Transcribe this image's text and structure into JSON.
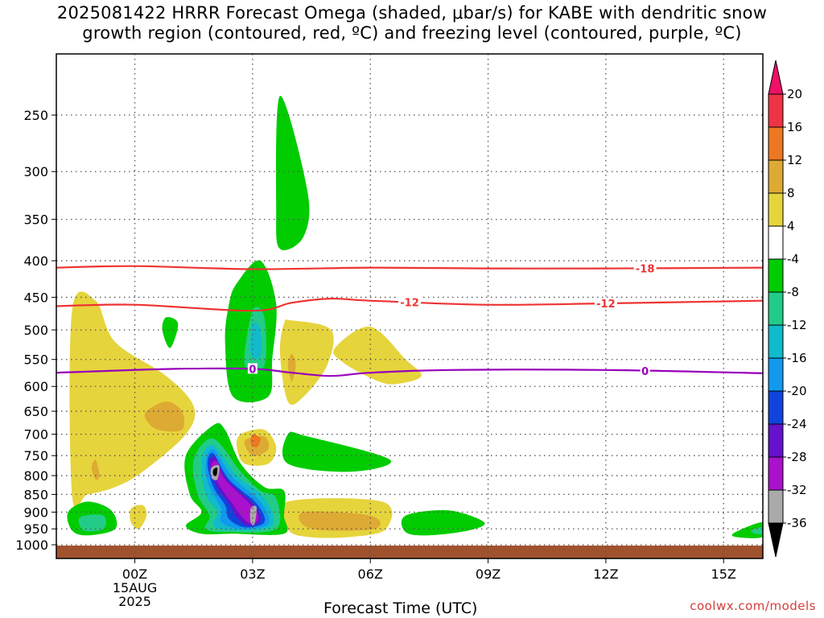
{
  "title": {
    "line1": "2025081422 HRRR Forecast Omega (shaded, μbar/s) for KABE with dendritic snow",
    "line2": "growth region (contoured, red, ºC) and freezing level (contoured, purple, ºC)"
  },
  "watermark": "coolwx.com/models",
  "chart_data": {
    "type": "heatmap",
    "xlabel": "Forecast Time (UTC)",
    "ylabel": "",
    "x_ticks": [
      {
        "hour": 0,
        "label": "00Z",
        "sub1": "15AUG",
        "sub2": "2025"
      },
      {
        "hour": 3,
        "label": "03Z"
      },
      {
        "hour": 6,
        "label": "06Z"
      },
      {
        "hour": 9,
        "label": "09Z"
      },
      {
        "hour": 12,
        "label": "12Z"
      },
      {
        "hour": 15,
        "label": "15Z"
      }
    ],
    "xlim_hours": [
      -2,
      16
    ],
    "y_ticks_hpa": [
      250,
      300,
      350,
      400,
      450,
      500,
      550,
      600,
      650,
      700,
      750,
      800,
      850,
      900,
      950,
      1000
    ],
    "ylim_hpa": [
      200,
      1000
    ],
    "y_scale": "log",
    "grid": "dotted",
    "colorbar": {
      "levels": [
        20,
        16,
        12,
        8,
        4,
        -4,
        -8,
        -12,
        -16,
        -20,
        -24,
        -28,
        -32,
        -36
      ],
      "colors": [
        "#ee1166",
        "#ee3344",
        "#ee7722",
        "#ddaa33",
        "#e6d43c",
        "#ffffff",
        "#00cc00",
        "#22cc88",
        "#11bbcc",
        "#1199ee",
        "#1144dd",
        "#6611cc",
        "#aa11cc",
        "#aaaaaa",
        "#000000"
      ]
    },
    "contours": [
      {
        "name": "-18",
        "color": "#ee3333",
        "label_hours": [
          13
        ],
        "points": [
          [
            -2,
            409
          ],
          [
            0,
            407
          ],
          [
            3,
            411
          ],
          [
            6,
            409
          ],
          [
            9,
            410
          ],
          [
            12,
            410
          ],
          [
            16,
            409
          ]
        ]
      },
      {
        "name": "-12",
        "color": "#ee3333",
        "label_hours": [
          7,
          12
        ],
        "points": [
          [
            -2,
            463
          ],
          [
            0,
            461
          ],
          [
            3,
            470
          ],
          [
            4,
            458
          ],
          [
            5,
            452
          ],
          [
            6,
            455
          ],
          [
            9,
            461
          ],
          [
            12,
            459
          ],
          [
            16,
            455
          ]
        ]
      },
      {
        "name": "0",
        "color": "#9900bb",
        "label_hours": [
          3,
          13
        ],
        "points": [
          [
            -2,
            574
          ],
          [
            1,
            567
          ],
          [
            3,
            567
          ],
          [
            4,
            574
          ],
          [
            5,
            580
          ],
          [
            6,
            574
          ],
          [
            8,
            569
          ],
          [
            12,
            569
          ],
          [
            16,
            575
          ]
        ]
      }
    ],
    "shaded_regions": [
      {
        "value": 6,
        "color": "#e6d43c",
        "points": [
          [
            -1.6,
            850
          ],
          [
            -1.6,
            470
          ],
          [
            -1,
            455
          ],
          [
            -0.5,
            520
          ],
          [
            0.8,
            580
          ],
          [
            1.5,
            640
          ],
          [
            1.3,
            700
          ],
          [
            0.2,
            790
          ],
          [
            -0.5,
            830
          ],
          [
            -1.2,
            850
          ]
        ]
      },
      {
        "value": 10,
        "color": "#ddaa33",
        "points": [
          [
            0.3,
            650
          ],
          [
            0.8,
            630
          ],
          [
            1.2,
            650
          ],
          [
            1.2,
            690
          ],
          [
            0.6,
            690
          ],
          [
            0.3,
            670
          ]
        ]
      },
      {
        "value": 10,
        "color": "#ddaa33",
        "points": [
          [
            -1.1,
            780
          ],
          [
            -1,
            760
          ],
          [
            -0.9,
            800
          ],
          [
            -1,
            810
          ]
        ]
      },
      {
        "value": 6,
        "color": "#e6d43c",
        "points": [
          [
            4,
            485
          ],
          [
            5,
            500
          ],
          [
            4.9,
            560
          ],
          [
            4.3,
            620
          ],
          [
            3.9,
            630
          ],
          [
            3.7,
            540
          ],
          [
            3.8,
            490
          ]
        ]
      },
      {
        "value": 10,
        "color": "#ddaa33",
        "points": [
          [
            4,
            540
          ],
          [
            4.1,
            560
          ],
          [
            4,
            590
          ],
          [
            3.9,
            560
          ]
        ]
      },
      {
        "value": 6,
        "color": "#e6d43c",
        "points": [
          [
            5.1,
            530
          ],
          [
            6,
            495
          ],
          [
            6.9,
            550
          ],
          [
            7.3,
            580
          ],
          [
            6.7,
            595
          ],
          [
            6.2,
            590
          ],
          [
            5.3,
            555
          ]
        ]
      },
      {
        "value": 6,
        "color": "#e6d43c",
        "points": [
          [
            -0.1,
            890
          ],
          [
            0.2,
            880
          ],
          [
            0.3,
            910
          ],
          [
            0.1,
            950
          ],
          [
            -0.1,
            930
          ]
        ]
      },
      {
        "value": 6,
        "color": "#e6d43c",
        "points": [
          [
            2.6,
            730
          ],
          [
            2.7,
            700
          ],
          [
            3.3,
            690
          ],
          [
            3.6,
            730
          ],
          [
            3.4,
            770
          ],
          [
            2.8,
            770
          ]
        ]
      },
      {
        "value": 10,
        "color": "#ddaa33",
        "points": [
          [
            2.8,
            715
          ],
          [
            3.3,
            705
          ],
          [
            3.4,
            735
          ],
          [
            3,
            750
          ]
        ]
      },
      {
        "value": 14,
        "color": "#ee7722",
        "points": [
          [
            3,
            700
          ],
          [
            3.2,
            710
          ],
          [
            3.1,
            730
          ],
          [
            2.95,
            720
          ]
        ]
      },
      {
        "value": 6,
        "color": "#e6d43c",
        "points": [
          [
            3.9,
            870
          ],
          [
            6.3,
            870
          ],
          [
            6.4,
            950
          ],
          [
            5.5,
            975
          ],
          [
            4.4,
            975
          ],
          [
            3.9,
            950
          ]
        ]
      },
      {
        "value": 10,
        "color": "#ddaa33",
        "points": [
          [
            4.3,
            900
          ],
          [
            6,
            910
          ],
          [
            6.1,
            950
          ],
          [
            4.5,
            950
          ]
        ]
      },
      {
        "value": -6,
        "color": "#00cc00",
        "points": [
          [
            3.7,
            235
          ],
          [
            4.4,
            320
          ],
          [
            4.3,
            370
          ],
          [
            3.7,
            385
          ],
          [
            3.6,
            340
          ]
        ]
      },
      {
        "value": -6,
        "color": "#00cc00",
        "points": [
          [
            2.6,
            430
          ],
          [
            3.2,
            400
          ],
          [
            3.6,
            460
          ],
          [
            3.5,
            550
          ],
          [
            3.4,
            620
          ],
          [
            2.5,
            620
          ],
          [
            2.3,
            520
          ],
          [
            2.4,
            460
          ]
        ]
      },
      {
        "value": -10,
        "color": "#22cc88",
        "points": [
          [
            3,
            470
          ],
          [
            3.3,
            480
          ],
          [
            3.3,
            560
          ],
          [
            2.8,
            560
          ]
        ]
      },
      {
        "value": -14,
        "color": "#11bbcc",
        "points": [
          [
            3,
            490
          ],
          [
            3.2,
            500
          ],
          [
            3.2,
            545
          ],
          [
            2.95,
            540
          ]
        ]
      },
      {
        "value": -6,
        "color": "#00cc00",
        "points": [
          [
            0.8,
            480
          ],
          [
            1.1,
            490
          ],
          [
            0.9,
            530
          ],
          [
            0.7,
            500
          ]
        ]
      },
      {
        "value": -6,
        "color": "#00cc00",
        "points": [
          [
            3.9,
            700
          ],
          [
            4.4,
            705
          ],
          [
            6.5,
            760
          ],
          [
            5.5,
            790
          ],
          [
            3.9,
            770
          ]
        ]
      },
      {
        "value": -6,
        "color": "#00cc00",
        "points": [
          [
            -1.7,
            900
          ],
          [
            -1.2,
            870
          ],
          [
            -0.6,
            895
          ],
          [
            -0.5,
            950
          ],
          [
            -1.2,
            970
          ],
          [
            -1.6,
            955
          ]
        ]
      },
      {
        "value": -10,
        "color": "#22cc88",
        "points": [
          [
            -1.4,
            915
          ],
          [
            -0.8,
            910
          ],
          [
            -0.8,
            950
          ],
          [
            -1.3,
            955
          ]
        ]
      },
      {
        "value": -6,
        "color": "#00cc00",
        "points": [
          [
            6.9,
            910
          ],
          [
            8,
            895
          ],
          [
            8.9,
            930
          ],
          [
            8.5,
            955
          ],
          [
            7.5,
            970
          ],
          [
            6.9,
            960
          ]
        ]
      },
      {
        "value": -6,
        "color": "#00cc00",
        "points": [
          [
            15.3,
            960
          ],
          [
            16,
            930
          ],
          [
            16,
            975
          ],
          [
            15.3,
            975
          ]
        ]
      },
      {
        "value": -10,
        "color": "#22cc88",
        "points": [
          [
            15.7,
            955
          ],
          [
            16,
            945
          ],
          [
            16,
            965
          ],
          [
            15.8,
            965
          ]
        ]
      },
      {
        "value": -6,
        "color": "#00cc00",
        "points": [
          [
            1.3,
            750
          ],
          [
            2,
            680
          ],
          [
            2.3,
            690
          ],
          [
            2.7,
            770
          ],
          [
            3.3,
            830
          ],
          [
            3.8,
            840
          ],
          [
            3.8,
            910
          ],
          [
            3.8,
            965
          ],
          [
            2.5,
            965
          ],
          [
            1.7,
            965
          ],
          [
            1.3,
            940
          ],
          [
            1.7,
            900
          ],
          [
            1.4,
            850
          ]
        ]
      },
      {
        "value": -10,
        "color": "#22cc88",
        "points": [
          [
            1.5,
            760
          ],
          [
            2,
            710
          ],
          [
            2.7,
            790
          ],
          [
            3.2,
            840
          ],
          [
            3.6,
            860
          ],
          [
            3.6,
            950
          ],
          [
            2.4,
            960
          ],
          [
            1.8,
            950
          ],
          [
            1.9,
            910
          ],
          [
            1.6,
            850
          ]
        ]
      },
      {
        "value": -14,
        "color": "#11bbcc",
        "points": [
          [
            1.7,
            760
          ],
          [
            2,
            725
          ],
          [
            2.6,
            800
          ],
          [
            3.3,
            860
          ],
          [
            3.5,
            940
          ],
          [
            2.5,
            955
          ],
          [
            2,
            940
          ],
          [
            2.1,
            900
          ],
          [
            1.8,
            850
          ]
        ]
      },
      {
        "value": -18,
        "color": "#1199ee",
        "points": [
          [
            1.8,
            770
          ],
          [
            2,
            735
          ],
          [
            2.5,
            805
          ],
          [
            3.2,
            870
          ],
          [
            3.4,
            935
          ],
          [
            2.7,
            950
          ],
          [
            2.2,
            930
          ],
          [
            2.2,
            890
          ],
          [
            1.9,
            830
          ]
        ]
      },
      {
        "value": -22,
        "color": "#1144dd",
        "points": [
          [
            1.85,
            770
          ],
          [
            2,
            745
          ],
          [
            2.4,
            810
          ],
          [
            3.1,
            875
          ],
          [
            3.3,
            930
          ],
          [
            2.8,
            945
          ],
          [
            2.4,
            920
          ],
          [
            2.3,
            880
          ],
          [
            2,
            830
          ]
        ]
      },
      {
        "value": -26,
        "color": "#6611cc",
        "points": [
          [
            1.9,
            770
          ],
          [
            2.05,
            755
          ],
          [
            2.35,
            810
          ],
          [
            3.05,
            880
          ],
          [
            3.2,
            925
          ],
          [
            2.9,
            940
          ],
          [
            2.6,
            915
          ],
          [
            2.4,
            875
          ],
          [
            2.1,
            830
          ]
        ]
      },
      {
        "value": -30,
        "color": "#aa11cc",
        "points": [
          [
            1.95,
            775
          ],
          [
            2.1,
            765
          ],
          [
            2.3,
            810
          ],
          [
            3,
            885
          ],
          [
            3.15,
            920
          ],
          [
            2.95,
            935
          ],
          [
            2.7,
            910
          ],
          [
            2.45,
            870
          ],
          [
            2.15,
            825
          ]
        ]
      },
      {
        "value": -34,
        "color": "#aaaaaa",
        "points": [
          [
            1.95,
            780
          ],
          [
            2.15,
            775
          ],
          [
            2.1,
            810
          ],
          [
            1.95,
            805
          ]
        ]
      },
      {
        "value": -34,
        "color": "#aaaaaa",
        "points": [
          [
            2.95,
            890
          ],
          [
            3.1,
            885
          ],
          [
            3.05,
            935
          ],
          [
            2.95,
            930
          ]
        ]
      },
      {
        "value": -38,
        "color": "#000000",
        "points": [
          [
            2,
            785
          ],
          [
            2.1,
            780
          ],
          [
            2.08,
            800
          ],
          [
            2,
            798
          ]
        ]
      }
    ]
  }
}
